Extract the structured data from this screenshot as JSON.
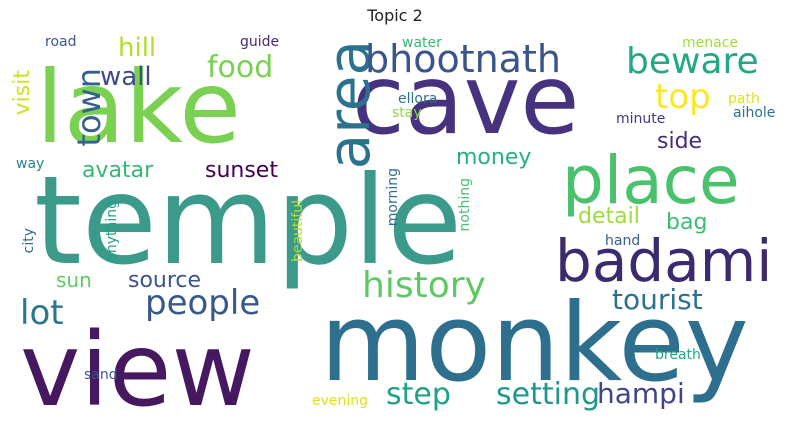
{
  "chart_data": {
    "type": "wordcloud",
    "title": "Topic 2",
    "words": [
      {
        "text": "temple",
        "weight": 1.0,
        "color": "#3b9a8a"
      },
      {
        "text": "monkey",
        "weight": 0.95,
        "color": "#2e6f8e"
      },
      {
        "text": "view",
        "weight": 0.9,
        "color": "#46185f"
      },
      {
        "text": "lake",
        "weight": 0.85,
        "color": "#7ad151"
      },
      {
        "text": "cave",
        "weight": 0.84,
        "color": "#46327e"
      },
      {
        "text": "place",
        "weight": 0.6,
        "color": "#4ac16d"
      },
      {
        "text": "area",
        "weight": 0.55,
        "color": "#2c728e"
      },
      {
        "text": "badami",
        "weight": 0.5,
        "color": "#3b2a6e"
      },
      {
        "text": "bhootnath",
        "weight": 0.38,
        "color": "#3a548c"
      },
      {
        "text": "beware",
        "weight": 0.33,
        "color": "#22a884"
      },
      {
        "text": "history",
        "weight": 0.3,
        "color": "#5ec962"
      },
      {
        "text": "people",
        "weight": 0.3,
        "color": "#38588c"
      },
      {
        "text": "top",
        "weight": 0.28,
        "color": "#fde725"
      },
      {
        "text": "lot",
        "weight": 0.28,
        "color": "#2a788e"
      },
      {
        "text": "setting",
        "weight": 0.26,
        "color": "#1f988b"
      },
      {
        "text": "step",
        "weight": 0.26,
        "color": "#1fa187"
      },
      {
        "text": "food",
        "weight": 0.26,
        "color": "#7ad151"
      },
      {
        "text": "town",
        "weight": 0.26,
        "color": "#355f8d"
      },
      {
        "text": "tourist",
        "weight": 0.24,
        "color": "#2c728e"
      },
      {
        "text": "hampi",
        "weight": 0.24,
        "color": "#414487"
      },
      {
        "text": "wall",
        "weight": 0.22,
        "color": "#3e4c8a"
      },
      {
        "text": "hill",
        "weight": 0.22,
        "color": "#b5de2b"
      },
      {
        "text": "source",
        "weight": 0.22,
        "color": "#3a548c"
      },
      {
        "text": "sunset",
        "weight": 0.2,
        "color": "#440154"
      },
      {
        "text": "avatar",
        "weight": 0.2,
        "color": "#35b779"
      },
      {
        "text": "money",
        "weight": 0.2,
        "color": "#29af7f"
      },
      {
        "text": "visit",
        "weight": 0.2,
        "color": "#d2e21b"
      },
      {
        "text": "side",
        "weight": 0.2,
        "color": "#472c7a"
      },
      {
        "text": "detail",
        "weight": 0.2,
        "color": "#9fda3a"
      },
      {
        "text": "bag",
        "weight": 0.2,
        "color": "#3dbc74"
      },
      {
        "text": "sun",
        "weight": 0.18,
        "color": "#5ec962"
      },
      {
        "text": "guide",
        "weight": 0.1,
        "color": "#482878"
      },
      {
        "text": "road",
        "weight": 0.1,
        "color": "#39568c"
      },
      {
        "text": "water",
        "weight": 0.1,
        "color": "#35b779"
      },
      {
        "text": "menace",
        "weight": 0.1,
        "color": "#a0da39"
      },
      {
        "text": "ellora",
        "weight": 0.1,
        "color": "#2c728e"
      },
      {
        "text": "stay",
        "weight": 0.1,
        "color": "#90d743"
      },
      {
        "text": "path",
        "weight": 0.1,
        "color": "#dde318"
      },
      {
        "text": "minute",
        "weight": 0.1,
        "color": "#453781"
      },
      {
        "text": "aihole",
        "weight": 0.1,
        "color": "#2c728e"
      },
      {
        "text": "way",
        "weight": 0.1,
        "color": "#26828e"
      },
      {
        "text": "city",
        "weight": 0.1,
        "color": "#31688e"
      },
      {
        "text": "anything",
        "weight": 0.1,
        "color": "#1fa187"
      },
      {
        "text": "beautiful",
        "weight": 0.1,
        "color": "#b5de2b"
      },
      {
        "text": "morning",
        "weight": 0.1,
        "color": "#2c728e"
      },
      {
        "text": "nothing",
        "weight": 0.1,
        "color": "#4ac16d"
      },
      {
        "text": "hand",
        "weight": 0.1,
        "color": "#355f8d"
      },
      {
        "text": "breath",
        "weight": 0.1,
        "color": "#22a884"
      },
      {
        "text": "sand",
        "weight": 0.1,
        "color": "#39568c"
      },
      {
        "text": "evening",
        "weight": 0.1,
        "color": "#dde318"
      }
    ]
  }
}
